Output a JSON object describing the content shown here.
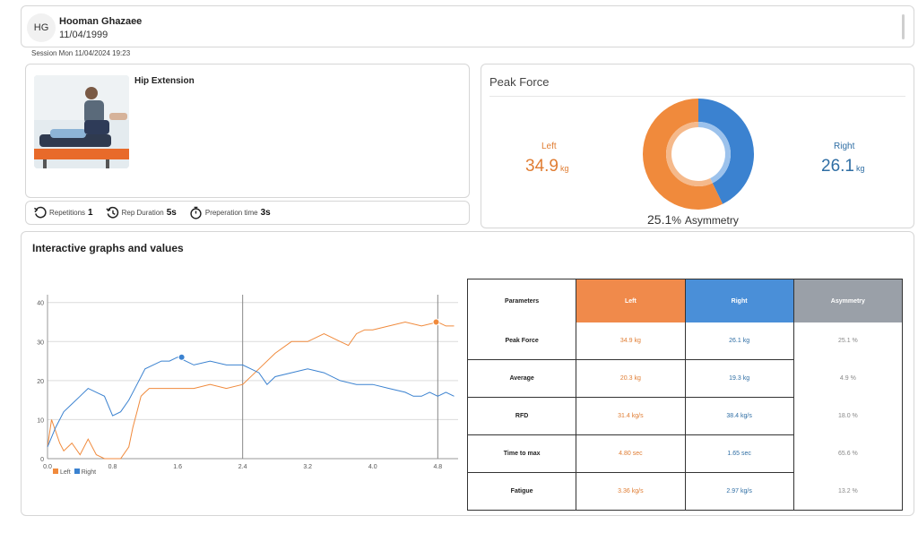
{
  "patient": {
    "initials": "HG",
    "name": "Hooman Ghazaee",
    "dob": "11/04/1999"
  },
  "session": "Session Mon 11/04/2024 19:23",
  "exercise": {
    "title": "Hip Extension",
    "stats": [
      {
        "icon": "undo-icon",
        "label": "Repetitions",
        "value": "1"
      },
      {
        "icon": "history-icon",
        "label": "Rep Duration",
        "value": "5s"
      },
      {
        "icon": "stopwatch-icon",
        "label": "Preperation time",
        "value": "3s"
      }
    ]
  },
  "peak_force": {
    "title": "Peak Force",
    "left_label": "Left",
    "left_value": "34.9",
    "left_unit": "kg",
    "right_label": "Right",
    "right_value": "26.1",
    "right_unit": "kg",
    "asymmetry_value": "25.1",
    "asymmetry_unit": "%",
    "asymmetry_label": "Asymmetry",
    "colors": {
      "left": "#f08a3c",
      "right": "#3b82d0"
    }
  },
  "graphs": {
    "title": "Interactive graphs and values",
    "legend": [
      {
        "label": "Left",
        "color": "#f08a3c"
      },
      {
        "label": "Right",
        "color": "#3b82d0"
      }
    ]
  },
  "chart_data": {
    "type": "line",
    "x_ticks": [
      "0.0",
      "0.8",
      "1.6",
      "2.4",
      "3.2",
      "4.0",
      "4.8"
    ],
    "y_ticks": [
      "0",
      "10",
      "20",
      "30",
      "40"
    ],
    "xlim": [
      0,
      5.05
    ],
    "ylim": [
      0,
      42
    ],
    "vertical_lines": [
      2.4,
      4.8
    ],
    "series": [
      {
        "name": "Left",
        "color": "#f08a3c",
        "x": [
          0,
          0.05,
          0.1,
          0.15,
          0.2,
          0.3,
          0.4,
          0.5,
          0.6,
          0.7,
          0.8,
          0.9,
          1.0,
          1.05,
          1.1,
          1.15,
          1.2,
          1.25,
          1.3,
          1.35,
          1.4,
          1.5,
          1.6,
          1.8,
          2.0,
          2.2,
          2.4,
          2.6,
          2.8,
          3.0,
          3.2,
          3.4,
          3.6,
          3.7,
          3.8,
          3.9,
          4.0,
          4.2,
          4.4,
          4.6,
          4.8,
          4.9,
          5.0
        ],
        "y": [
          3,
          10,
          7,
          4,
          2,
          4,
          1,
          5,
          1,
          0,
          0,
          0,
          3,
          8,
          12,
          16,
          17,
          18,
          18,
          18,
          18,
          18,
          18,
          18,
          19,
          18,
          19,
          23,
          27,
          30,
          30,
          32,
          30,
          29,
          32,
          33,
          33,
          34,
          35,
          34,
          35,
          34,
          34
        ]
      },
      {
        "name": "Right",
        "color": "#3b82d0",
        "x": [
          0,
          0.1,
          0.2,
          0.3,
          0.4,
          0.5,
          0.6,
          0.7,
          0.8,
          0.9,
          1.0,
          1.1,
          1.2,
          1.3,
          1.4,
          1.5,
          1.6,
          1.7,
          1.8,
          2.0,
          2.2,
          2.4,
          2.6,
          2.7,
          2.8,
          3.0,
          3.2,
          3.4,
          3.6,
          3.8,
          4.0,
          4.2,
          4.4,
          4.5,
          4.6,
          4.7,
          4.8,
          4.9,
          5.0
        ],
        "y": [
          3,
          8,
          12,
          14,
          16,
          18,
          17,
          16,
          11,
          12,
          15,
          19,
          23,
          24,
          25,
          25,
          26,
          25,
          24,
          25,
          24,
          24,
          22,
          19,
          21,
          22,
          23,
          22,
          20,
          19,
          19,
          18,
          17,
          16,
          16,
          17,
          16,
          17,
          16
        ]
      }
    ],
    "markers": [
      {
        "series": "Right",
        "x": 1.65,
        "y": 26
      },
      {
        "series": "Left",
        "x": 4.78,
        "y": 35
      }
    ]
  },
  "table": {
    "headers": [
      "Parameters",
      "Left",
      "Right",
      "Asymmetry"
    ],
    "header_colors": [
      "#ffffff",
      "#f08a4b",
      "#4a8fd8",
      "#9aa0a8"
    ],
    "rows": [
      [
        "Peak Force",
        "34.9 kg",
        "26.1 kg",
        "25.1 %"
      ],
      [
        "Average",
        "20.3 kg",
        "19.3 kg",
        "4.9 %"
      ],
      [
        "RFD",
        "31.4 kg/s",
        "38.4 kg/s",
        "18.0 %"
      ],
      [
        "Time to max",
        "4.80 sec",
        "1.65 sec",
        "65.6 %"
      ],
      [
        "Fatigue",
        "3.36 kg/s",
        "2.97 kg/s",
        "13.2 %"
      ]
    ]
  }
}
